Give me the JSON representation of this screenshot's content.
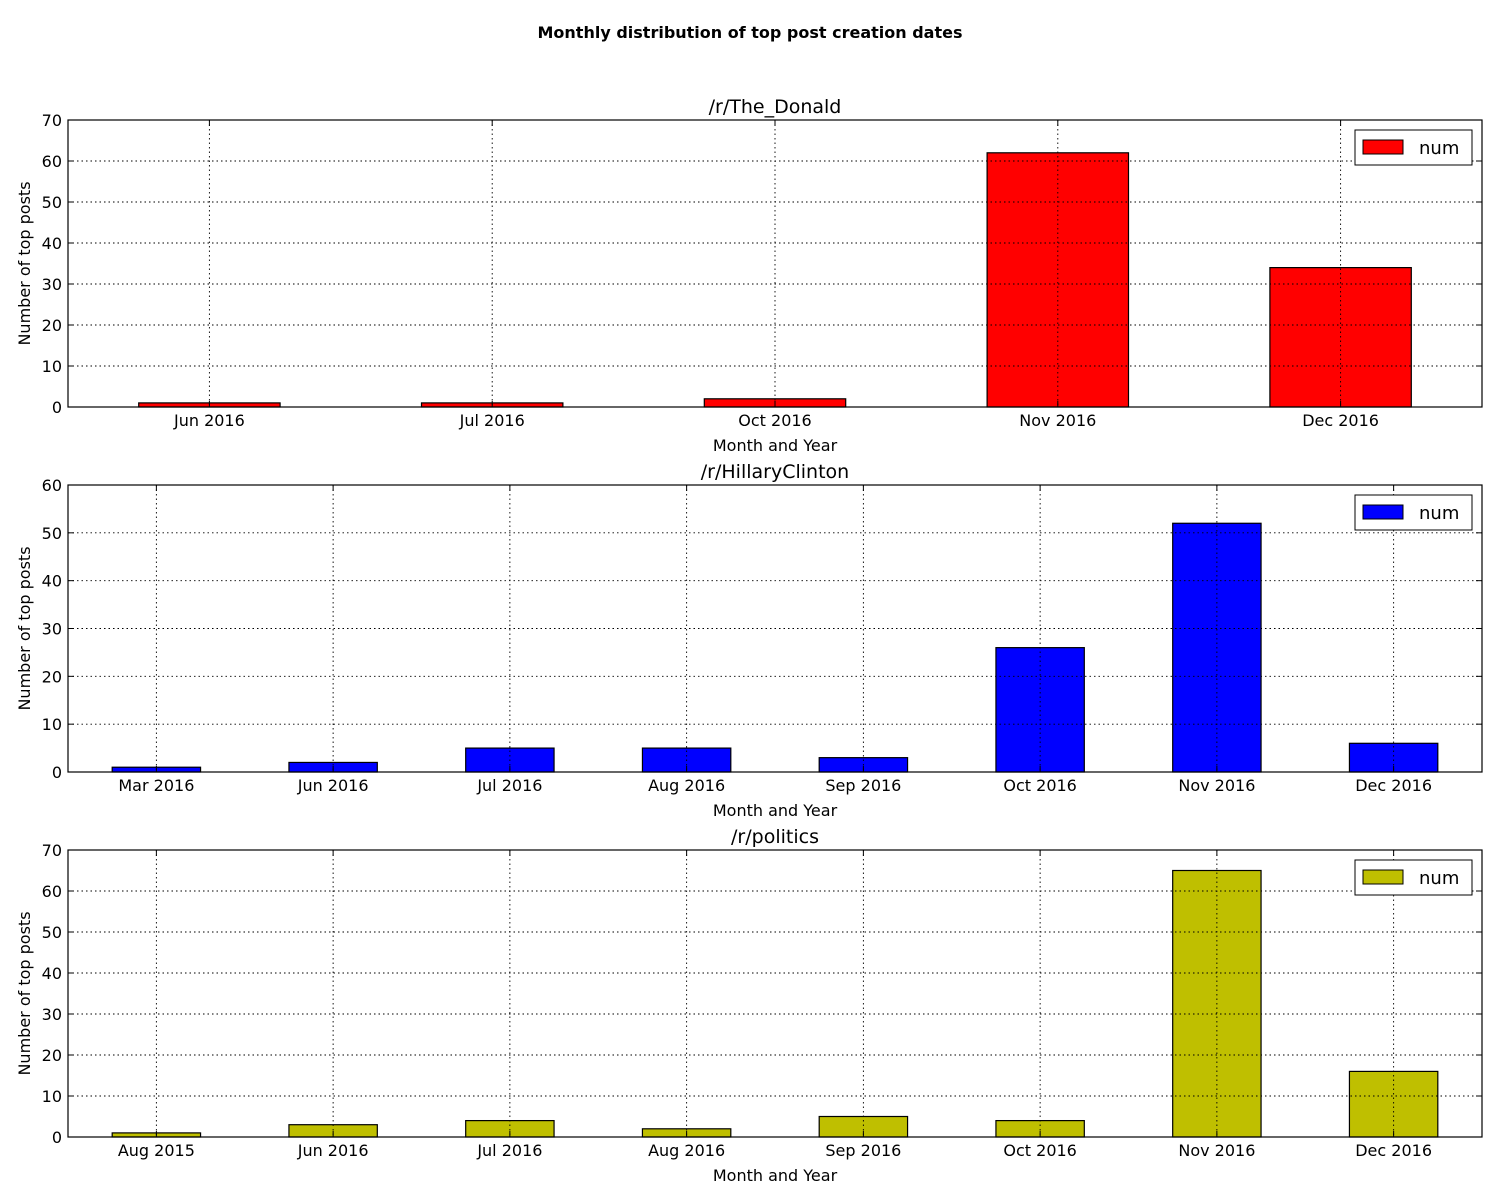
{
  "figure": {
    "title": "Monthly distribution of top post creation dates"
  },
  "chart_data": [
    {
      "type": "bar",
      "title": "/r/The_Donald",
      "xlabel": "Month and Year",
      "ylabel": "Number of top posts",
      "categories": [
        "Jun 2016",
        "Jul 2016",
        "Oct 2016",
        "Nov 2016",
        "Dec 2016"
      ],
      "series": [
        {
          "name": "num",
          "values": [
            1,
            1,
            2,
            62,
            34
          ],
          "color": "#ff0000"
        }
      ],
      "ylim": [
        0,
        70
      ],
      "yticks": [
        0,
        10,
        20,
        30,
        40,
        50,
        60,
        70
      ],
      "grid": true,
      "legend": "top-right"
    },
    {
      "type": "bar",
      "title": "/r/HillaryClinton",
      "xlabel": "Month and Year",
      "ylabel": "Number of top posts",
      "categories": [
        "Mar 2016",
        "Jun 2016",
        "Jul 2016",
        "Aug 2016",
        "Sep 2016",
        "Oct 2016",
        "Nov 2016",
        "Dec 2016"
      ],
      "series": [
        {
          "name": "num",
          "values": [
            1,
            2,
            5,
            5,
            3,
            26,
            52,
            6
          ],
          "color": "#0000ff"
        }
      ],
      "ylim": [
        0,
        60
      ],
      "yticks": [
        0,
        10,
        20,
        30,
        40,
        50,
        60
      ],
      "grid": true,
      "legend": "top-right"
    },
    {
      "type": "bar",
      "title": "/r/politics",
      "xlabel": "Month and Year",
      "ylabel": "Number of top posts",
      "categories": [
        "Aug 2015",
        "Jun 2016",
        "Jul 2016",
        "Aug 2016",
        "Sep 2016",
        "Oct 2016",
        "Nov 2016",
        "Dec 2016"
      ],
      "series": [
        {
          "name": "num",
          "values": [
            1,
            3,
            4,
            2,
            5,
            4,
            65,
            16
          ],
          "color": "#bfbf00"
        }
      ],
      "ylim": [
        0,
        70
      ],
      "yticks": [
        0,
        10,
        20,
        30,
        40,
        50,
        60,
        70
      ],
      "grid": true,
      "legend": "top-right"
    }
  ]
}
